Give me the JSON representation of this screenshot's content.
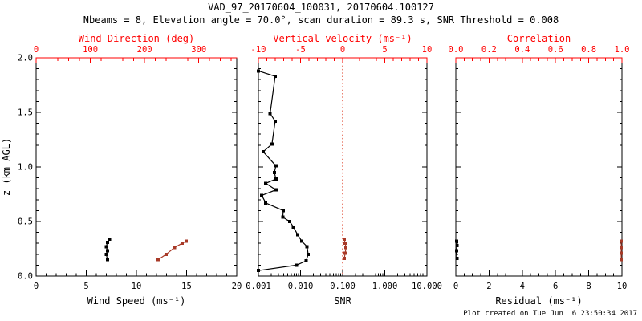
{
  "title": "VAD_97_20170604_100031, 20170604.100127",
  "subtitle": "Nbeams = 8, Elevation angle = 70.0°, scan duration = 89.3 s, SNR Threshold = 0.008",
  "footer": "Plot created on Tue Jun  6 23:50:34 2017",
  "colors": {
    "axis_red": "#ff0000",
    "data_red": "#a83a28",
    "dotted_red": "#e04b33",
    "black": "#000000",
    "background": "#ffffff"
  },
  "y_axis": {
    "label": "z (km AGL)",
    "lim": [
      0,
      2
    ],
    "tick_values": [
      0,
      0.5,
      1,
      1.5,
      2
    ],
    "tick_labels": [
      "0.0",
      "0.5",
      "1.0",
      "1.5",
      "2.0"
    ],
    "minor_step": 0.1
  },
  "chart_data": [
    {
      "name": "wind",
      "type": "line",
      "x_bottom": {
        "label": "Wind Speed (ms⁻¹)",
        "lim": [
          0,
          20
        ],
        "scale": "linear",
        "tick_values": [
          0,
          5,
          10,
          15,
          20
        ],
        "tick_labels": [
          "0",
          "5",
          "10",
          "15",
          "20"
        ],
        "minor_step": 1,
        "color": "#000000"
      },
      "x_top": {
        "label": "Wind Direction (deg)",
        "lim": [
          0,
          370
        ],
        "tick_values": [
          0,
          100,
          200,
          300
        ],
        "tick_labels": [
          "0",
          "100",
          "200",
          "300"
        ],
        "minor_step": 20,
        "color": "#ff0000"
      },
      "series": [
        {
          "name": "wind-speed",
          "axis": "bottom",
          "color": "#000000",
          "points": [
            [
              7.3,
              0.34
            ],
            [
              7.1,
              0.31
            ],
            [
              7.0,
              0.27
            ],
            [
              7.1,
              0.23
            ],
            [
              7.0,
              0.2
            ],
            [
              7.1,
              0.15
            ]
          ]
        },
        {
          "name": "wind-direction",
          "axis": "top",
          "color": "#a83a28",
          "points": [
            [
              277,
              0.32
            ],
            [
              269,
              0.3
            ],
            [
              255,
              0.26
            ],
            [
              240,
              0.2
            ],
            [
              225,
              0.15
            ]
          ]
        }
      ]
    },
    {
      "name": "snr",
      "type": "line",
      "x_bottom": {
        "label": "SNR",
        "lim": [
          0.001,
          10
        ],
        "scale": "log",
        "tick_values": [
          0.001,
          0.01,
          0.1,
          1,
          10
        ],
        "tick_labels": [
          "0.001",
          "0.010",
          "0.100",
          "1.000",
          "10.000"
        ],
        "color": "#000000"
      },
      "x_top": {
        "label": "Vertical velocity (ms⁻¹)",
        "lim": [
          -10,
          10
        ],
        "tick_values": [
          -10,
          -5,
          0,
          5,
          10
        ],
        "tick_labels": [
          "-10",
          "-5",
          "0",
          "5",
          "10"
        ],
        "minor_step": 1,
        "color": "#ff0000"
      },
      "refline_top": 0,
      "series": [
        {
          "name": "snr-profile",
          "axis": "bottom",
          "color": "#000000",
          "points": [
            [
              0.001,
              1.88
            ],
            [
              0.0025,
              1.83
            ],
            [
              0.0019,
              1.49
            ],
            [
              0.0025,
              1.42
            ],
            [
              0.0021,
              1.21
            ],
            [
              0.0013,
              1.14
            ],
            [
              0.0026,
              1.01
            ],
            [
              0.0024,
              0.95
            ],
            [
              0.0026,
              0.89
            ],
            [
              0.0015,
              0.85
            ],
            [
              0.0026,
              0.79
            ],
            [
              0.0012,
              0.74
            ],
            [
              0.0015,
              0.67
            ],
            [
              0.0039,
              0.6
            ],
            [
              0.0038,
              0.54
            ],
            [
              0.0055,
              0.5
            ],
            [
              0.0068,
              0.45
            ],
            [
              0.0085,
              0.38
            ],
            [
              0.0107,
              0.32
            ],
            [
              0.0143,
              0.27
            ],
            [
              0.0152,
              0.2
            ],
            [
              0.0137,
              0.14
            ],
            [
              0.008,
              0.1
            ],
            [
              0.001,
              0.05
            ]
          ]
        },
        {
          "name": "vertical-velocity",
          "axis": "top",
          "color": "#a83a28",
          "points": [
            [
              0.2,
              0.34
            ],
            [
              0.3,
              0.3
            ],
            [
              0.4,
              0.26
            ],
            [
              0.3,
              0.21
            ],
            [
              0.2,
              0.16
            ]
          ]
        }
      ]
    },
    {
      "name": "residual",
      "type": "line",
      "x_bottom": {
        "label": "Residual (ms⁻¹)",
        "lim": [
          0,
          10
        ],
        "scale": "linear",
        "tick_values": [
          0,
          2,
          4,
          6,
          8,
          10
        ],
        "tick_labels": [
          "0",
          "2",
          "4",
          "6",
          "8",
          "10"
        ],
        "minor_step": 0.5,
        "color": "#000000"
      },
      "x_top": {
        "label": "Correlation",
        "lim": [
          0,
          1
        ],
        "tick_values": [
          0,
          0.2,
          0.4,
          0.6,
          0.8,
          1
        ],
        "tick_labels": [
          "0.0",
          "0.2",
          "0.4",
          "0.6",
          "0.8",
          "1.0"
        ],
        "minor_step": 0.05,
        "color": "#ff0000"
      },
      "series": [
        {
          "name": "residual-profile",
          "axis": "bottom",
          "color": "#000000",
          "points": [
            [
              0.05,
              0.32
            ],
            [
              0.07,
              0.28
            ],
            [
              0.05,
              0.23
            ],
            [
              0.07,
              0.16
            ]
          ]
        },
        {
          "name": "correlation-profile",
          "axis": "top",
          "color": "#a83a28",
          "points": [
            [
              0.995,
              0.32
            ],
            [
              0.996,
              0.26
            ],
            [
              0.995,
              0.21
            ],
            [
              0.996,
              0.15
            ]
          ]
        }
      ]
    }
  ]
}
